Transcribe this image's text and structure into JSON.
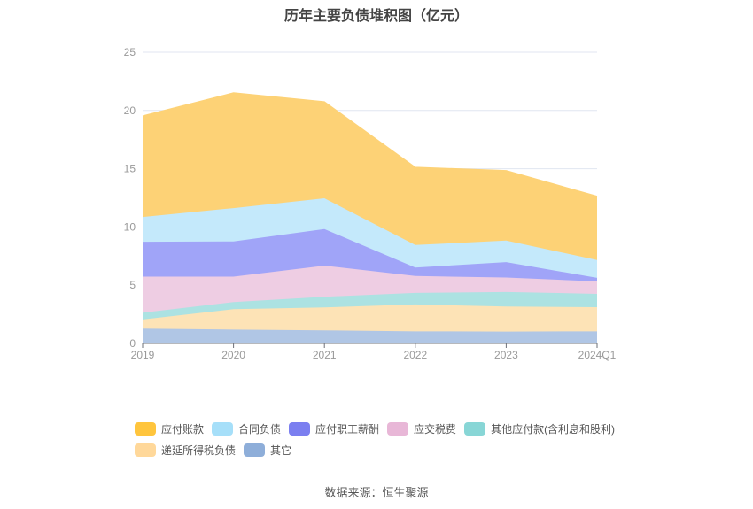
{
  "chart_data": {
    "type": "area",
    "stacked": true,
    "title": "历年主要负债堆积图（亿元）",
    "categories": [
      "2019",
      "2020",
      "2021",
      "2022",
      "2023",
      "2024Q1"
    ],
    "ylim": [
      0,
      25
    ],
    "yticks": [
      "0",
      "5",
      "10",
      "15",
      "20",
      "25"
    ],
    "grid": true,
    "legend_position": "bottom",
    "series": [
      {
        "name": "其它",
        "values": [
          1.27,
          1.19,
          1.12,
          1.04,
          1.02,
          1.04
        ],
        "color": "#8eaed9",
        "fill": "#b0c6e5"
      },
      {
        "name": "递延所得税负债",
        "values": [
          0.79,
          1.75,
          1.98,
          2.31,
          2.15,
          2.08
        ],
        "color": "#ffd89a",
        "fill": "#fde3b6"
      },
      {
        "name": "其他应付款(含利息和股利)",
        "values": [
          0.58,
          0.61,
          0.91,
          0.99,
          1.25,
          1.14
        ],
        "color": "#88d6d6",
        "fill": "#ace2e2"
      },
      {
        "name": "应交税费",
        "values": [
          3.1,
          2.19,
          2.67,
          1.45,
          1.24,
          1.07
        ],
        "color": "#e8b7d7",
        "fill": "#eecde3"
      },
      {
        "name": "应付职工薪酬",
        "values": [
          2.99,
          3.02,
          3.14,
          0.73,
          1.32,
          0.3
        ],
        "color": "#7b7ff0",
        "fill": "#a0a4f8"
      },
      {
        "name": "合同负债",
        "values": [
          2.13,
          2.86,
          2.64,
          1.93,
          1.85,
          1.53
        ],
        "color": "#a6dff9",
        "fill": "#c4e9fb"
      },
      {
        "name": "应付账款",
        "values": [
          8.68,
          9.9,
          8.3,
          6.68,
          6.02,
          5.48
        ],
        "color": "#ffc53d",
        "fill": "#fdd276"
      }
    ],
    "legend_order": [
      6,
      5,
      4,
      3,
      2,
      1,
      0
    ]
  },
  "source": "数据来源：恒生聚源"
}
